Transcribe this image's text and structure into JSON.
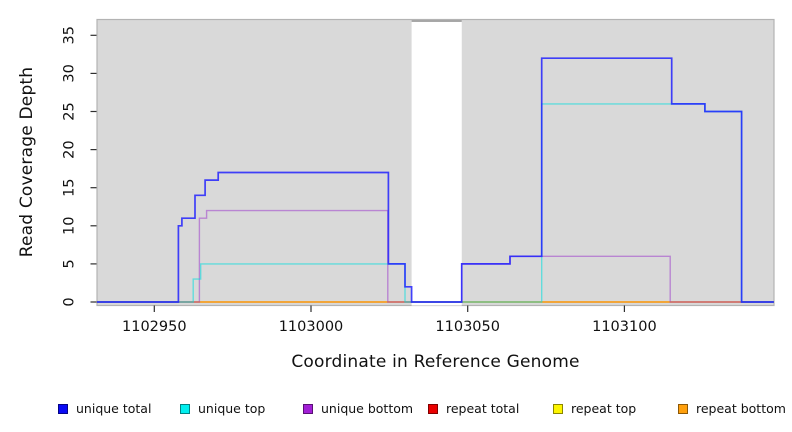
{
  "chart_data": {
    "type": "line",
    "subtype": "step-coverage",
    "title": "",
    "xlabel": "Coordinate in Reference Genome",
    "ylabel": "Read Coverage Depth",
    "x_ticks": [
      1102950,
      1103000,
      1103050,
      1103100
    ],
    "y_ticks": [
      0,
      5,
      10,
      15,
      20,
      25,
      30,
      35
    ],
    "xlim": [
      1102931.7,
      1103147.7
    ],
    "ylim": [
      0,
      37
    ],
    "grid": false,
    "plot_bg": "#d9d9d9",
    "frame_color": "#b3b3b3",
    "tick_color": "#2f2f2f",
    "gap_band": {
      "x_start": 1103032.1,
      "x_end": 1103048.1,
      "fill": "#ffffff",
      "top_edge": "#8c8c8c"
    },
    "series": [
      {
        "name": "repeat total",
        "color": "#dd0f0f",
        "opacity": 0.5,
        "width": 1.3,
        "start_value": 0,
        "changes": []
      },
      {
        "name": "repeat top",
        "color": "#ffe300",
        "opacity": 0.55,
        "width": 1.3,
        "start_value": 0,
        "changes": []
      },
      {
        "name": "repeat bottom",
        "color": "#ff9600",
        "opacity": 0.75,
        "width": 1.4,
        "start_value": 0,
        "changes": []
      },
      {
        "name": "unique bottom",
        "color": "#9932cc",
        "opacity": 0.5,
        "width": 1.4,
        "start_value": 0,
        "changes": [
          [
            1102964.4,
            11
          ],
          [
            1102966.7,
            12
          ],
          [
            1103024.5,
            0
          ],
          [
            1103048.1,
            5
          ],
          [
            1103063.5,
            6
          ],
          [
            1103114.6,
            0
          ]
        ]
      },
      {
        "name": "unique top",
        "color": "#00dede",
        "opacity": 0.55,
        "width": 1.4,
        "start_value": 0,
        "changes": [
          [
            1102962.4,
            3
          ],
          [
            1102964.8,
            5
          ],
          [
            1103030.0,
            0
          ],
          [
            1103073.6,
            26
          ],
          [
            1103125.7,
            25
          ],
          [
            1103137.4,
            0
          ]
        ]
      },
      {
        "name": "unique total",
        "color": "#1c1cff",
        "opacity": 0.82,
        "width": 1.7,
        "start_value": 0,
        "changes": [
          [
            1102957.7,
            10
          ],
          [
            1102958.8,
            11
          ],
          [
            1102963.0,
            14
          ],
          [
            1102966.2,
            16
          ],
          [
            1102970.4,
            17
          ],
          [
            1103024.7,
            5
          ],
          [
            1103030.0,
            2
          ],
          [
            1103032.1,
            0
          ],
          [
            1103048.1,
            5
          ],
          [
            1103063.5,
            6
          ],
          [
            1103073.6,
            32
          ],
          [
            1103115.1,
            26
          ],
          [
            1103125.7,
            25
          ],
          [
            1103137.4,
            0
          ]
        ]
      }
    ],
    "legend": {
      "position": "bottom",
      "items": [
        {
          "label": "unique total",
          "color": "#0a0af5"
        },
        {
          "label": "unique top",
          "color": "#00efef"
        },
        {
          "label": "unique bottom",
          "color": "#a21fd6"
        },
        {
          "label": "repeat total",
          "color": "#ea0000"
        },
        {
          "label": "repeat top",
          "color": "#fdf500"
        },
        {
          "label": "repeat bottom",
          "color": "#ffa00d"
        }
      ]
    }
  }
}
